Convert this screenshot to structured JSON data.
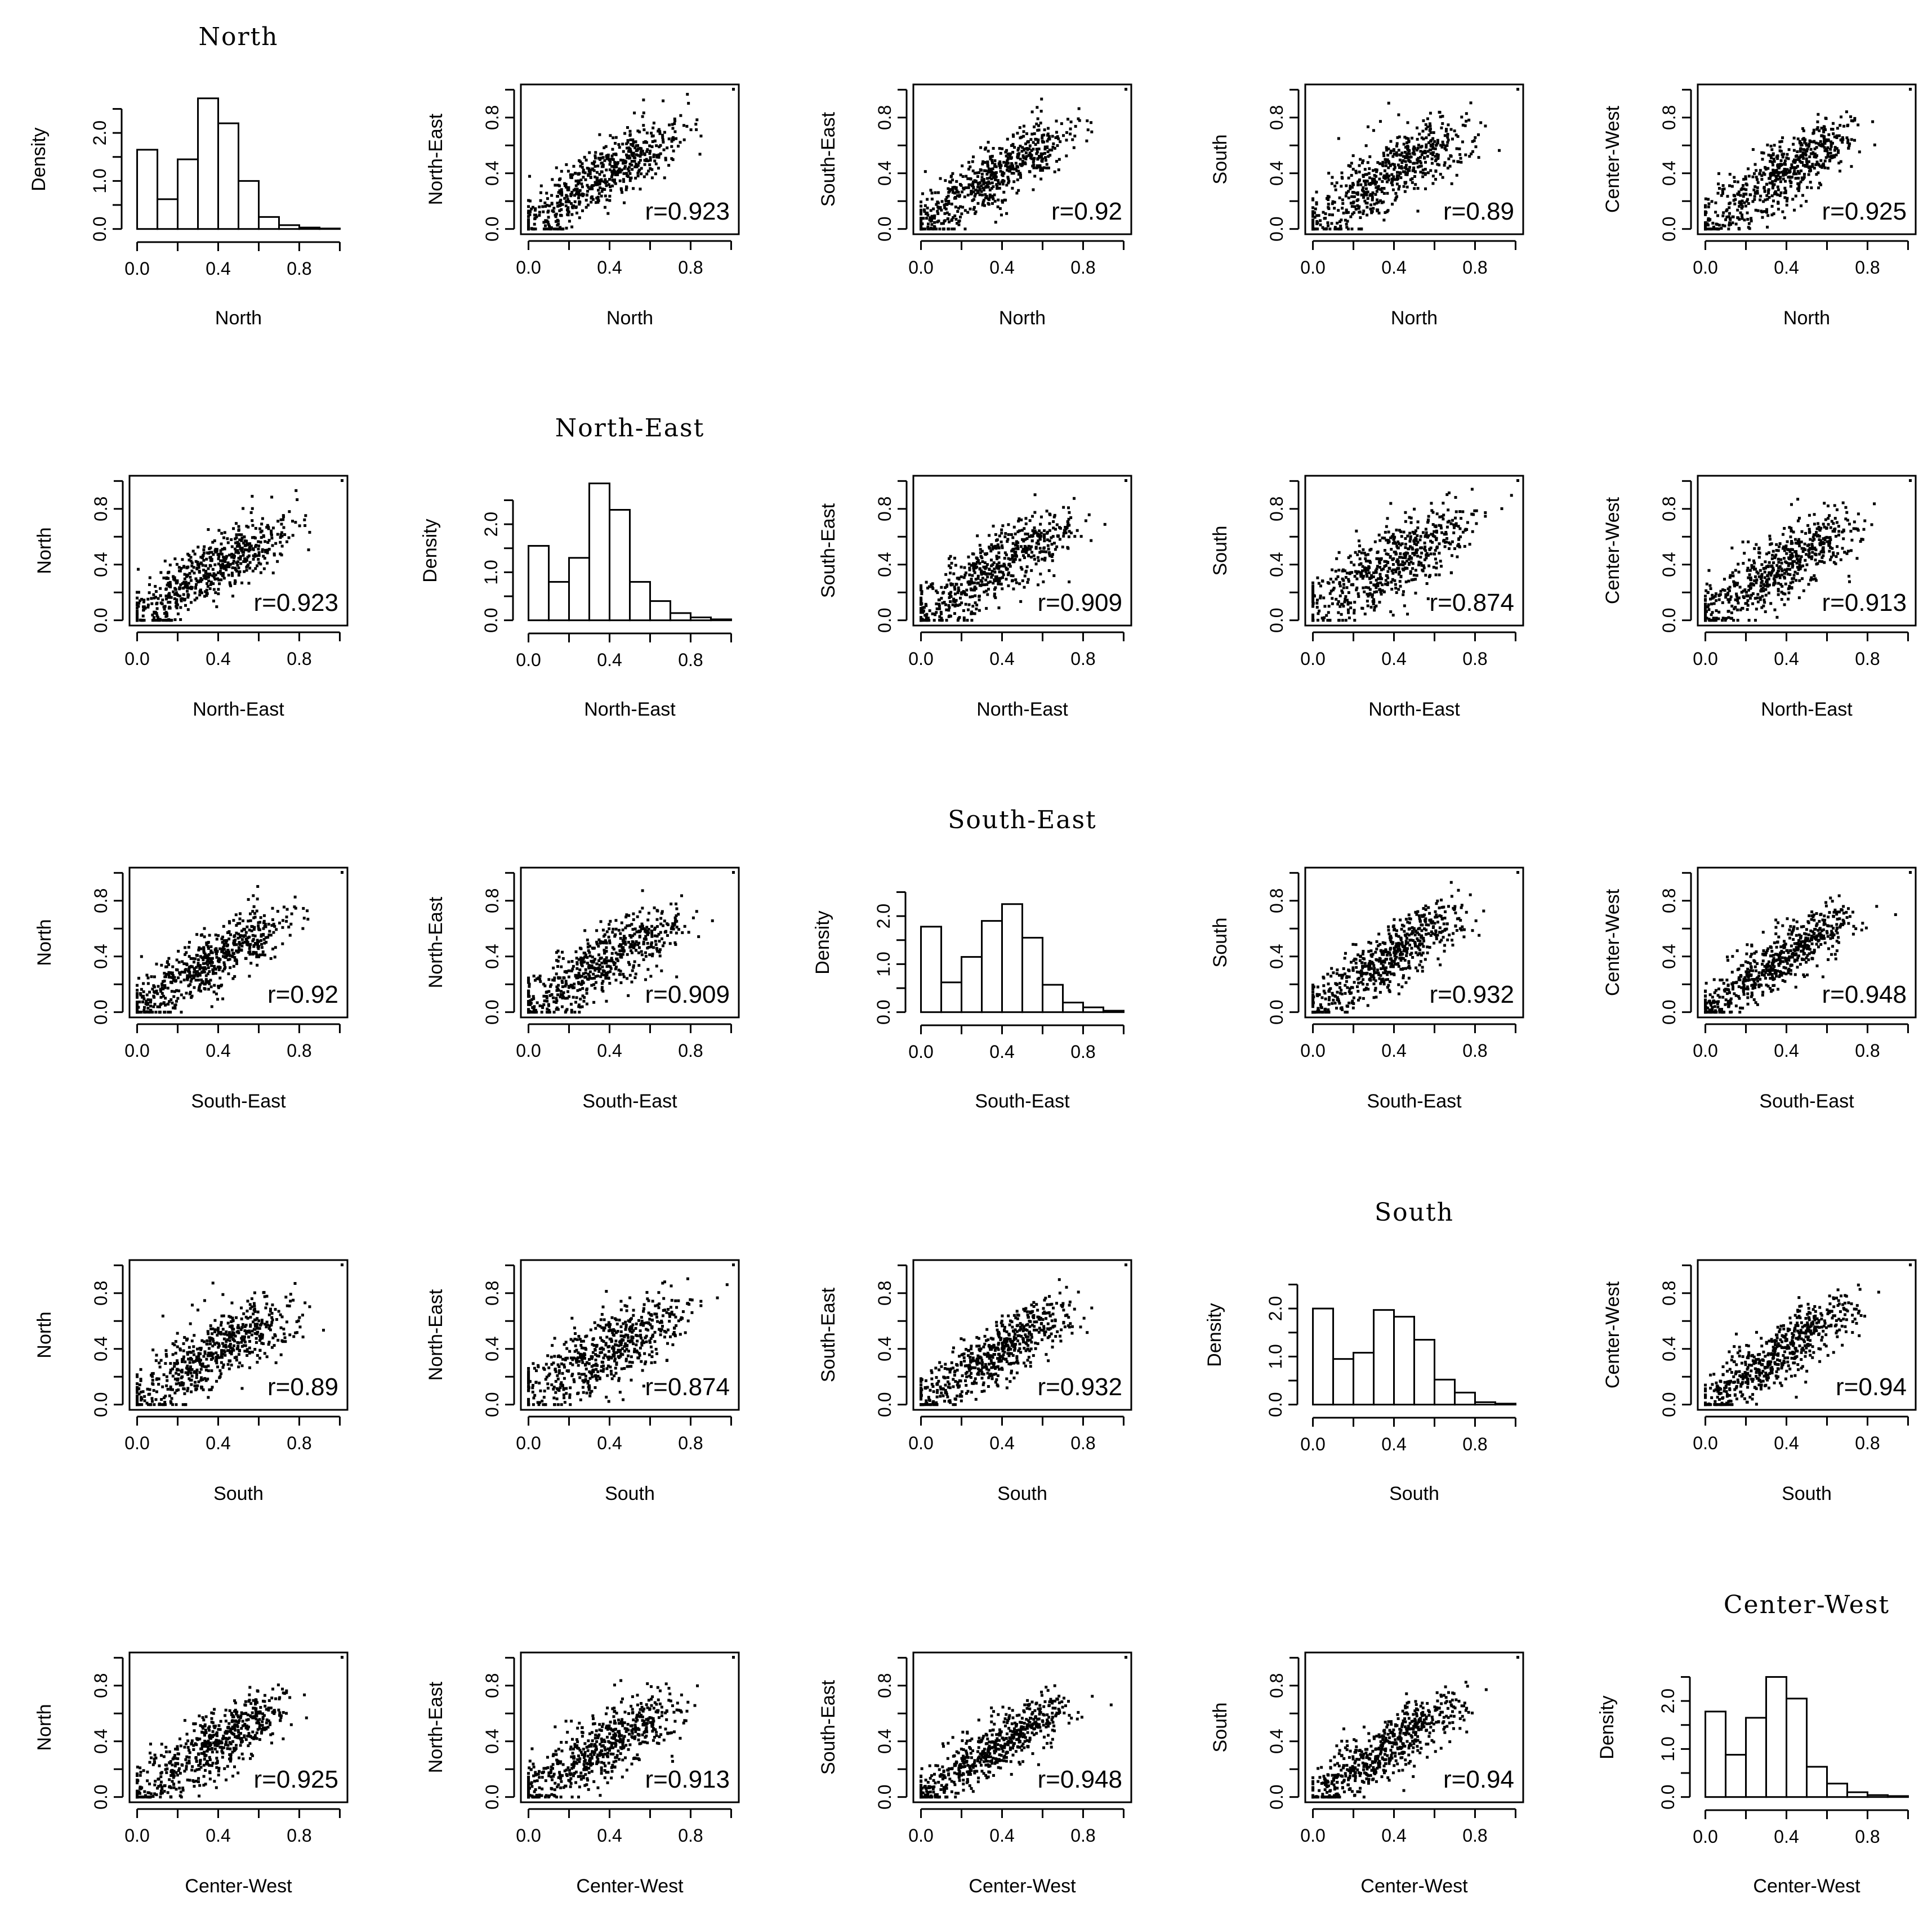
{
  "chart_data": {
    "type": "scatter-matrix",
    "variables": [
      "North",
      "North-East",
      "South-East",
      "South",
      "Center-West"
    ],
    "diagonal": {
      "type": "histogram",
      "ylabel": "Density",
      "bin_edges": [
        0.0,
        0.1,
        0.2,
        0.3,
        0.4,
        0.5,
        0.6,
        0.7,
        0.8,
        0.9,
        1.0
      ],
      "xticks": [
        "0.0",
        "0.4",
        "0.8"
      ],
      "yticks": [
        "0.0",
        "1.0",
        "2.0"
      ],
      "densities": {
        "North": [
          1.65,
          0.62,
          1.45,
          2.72,
          2.2,
          1.0,
          0.25,
          0.08,
          0.03,
          0.01
        ],
        "North-East": [
          1.55,
          0.8,
          1.3,
          2.85,
          2.3,
          0.8,
          0.4,
          0.15,
          0.06,
          0.02
        ],
        "South-East": [
          1.78,
          0.62,
          1.15,
          1.9,
          2.25,
          1.55,
          0.57,
          0.2,
          0.1,
          0.03
        ],
        "South": [
          2.0,
          0.95,
          1.08,
          1.97,
          1.83,
          1.35,
          0.52,
          0.25,
          0.05,
          0.02
        ],
        "Center-West": [
          1.78,
          0.88,
          1.65,
          2.5,
          2.05,
          0.63,
          0.28,
          0.1,
          0.04,
          0.02
        ]
      }
    },
    "off_diagonal": {
      "type": "scatter",
      "xlim": [
        0,
        1
      ],
      "ylim": [
        0,
        1
      ],
      "xticks": [
        "0.0",
        "0.4",
        "0.8"
      ],
      "yticks": [
        "0.0",
        "0.4",
        "0.8"
      ],
      "n_points": 600
    },
    "correlations": [
      {
        "a": "North",
        "b": "North-East",
        "label": "r=0.923"
      },
      {
        "a": "North",
        "b": "South-East",
        "label": "r=0.92"
      },
      {
        "a": "North",
        "b": "South",
        "label": "r=0.89"
      },
      {
        "a": "North",
        "b": "Center-West",
        "label": "r=0.925"
      },
      {
        "a": "North-East",
        "b": "South-East",
        "label": "r=0.909"
      },
      {
        "a": "North-East",
        "b": "South",
        "label": "r=0.874"
      },
      {
        "a": "North-East",
        "b": "Center-West",
        "label": "r=0.913"
      },
      {
        "a": "South-East",
        "b": "South",
        "label": "r=0.932"
      },
      {
        "a": "South-East",
        "b": "Center-West",
        "label": "r=0.948"
      },
      {
        "a": "South",
        "b": "Center-West",
        "label": "r=0.94"
      }
    ]
  }
}
